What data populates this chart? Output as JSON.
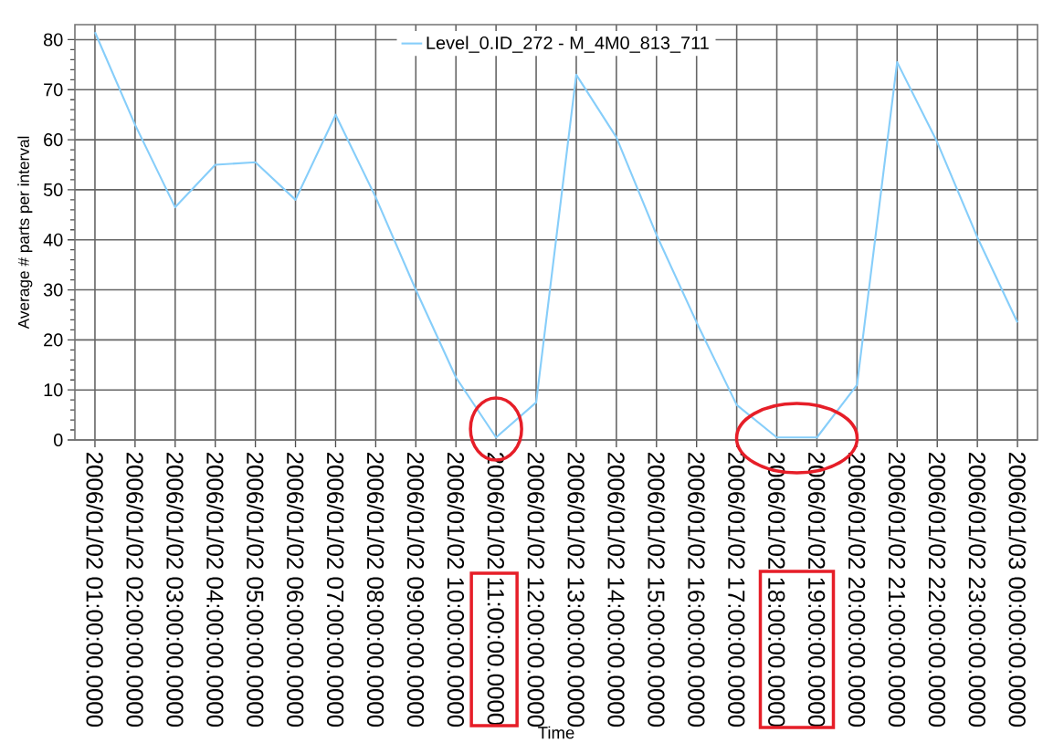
{
  "chart_data": {
    "type": "line",
    "xlabel": "Time",
    "ylabel": "Average # parts per interval",
    "categories": [
      "2006/01/02 01:00:00.0000",
      "2006/01/02 02:00:00.0000",
      "2006/01/02 03:00:00.0000",
      "2006/01/02 04:00:00.0000",
      "2006/01/02 05:00:00.0000",
      "2006/01/02 06:00:00.0000",
      "2006/01/02 07:00:00.0000",
      "2006/01/02 08:00:00.0000",
      "2006/01/02 09:00:00.0000",
      "2006/01/02 10:00:00.0000",
      "2006/01/02 11:00:00.0000",
      "2006/01/02 12:00:00.0000",
      "2006/01/02 13:00:00.0000",
      "2006/01/02 14:00:00.0000",
      "2006/01/02 15:00:00.0000",
      "2006/01/02 16:00:00.0000",
      "2006/01/02 17:00:00.0000",
      "2006/01/02 18:00:00.0000",
      "2006/01/02 19:00:00.0000",
      "2006/01/02 20:00:00.0000",
      "2006/01/02 21:00:00.0000",
      "2006/01/02 22:00:00.0000",
      "2006/01/02 23:00:00.0000",
      "2006/01/03 00:00:00.0000"
    ],
    "series": [
      {
        "name": "Level_0.ID_272 - M_4M0_813_711",
        "color": "#87cefa",
        "values": [
          81.5,
          63,
          46.5,
          55,
          55.5,
          48,
          65,
          48.5,
          30,
          12.5,
          0.5,
          7.5,
          73,
          60.5,
          41,
          23.5,
          7,
          0.5,
          0.5,
          11,
          75.5,
          59.5,
          40.5,
          23.5
        ]
      }
    ],
    "ylim": [
      0,
      83
    ],
    "yticks": [
      0,
      10,
      20,
      30,
      40,
      50,
      60,
      70,
      80
    ],
    "grid": true,
    "legend": "top",
    "marker": "none",
    "line_style": "solid"
  }
}
